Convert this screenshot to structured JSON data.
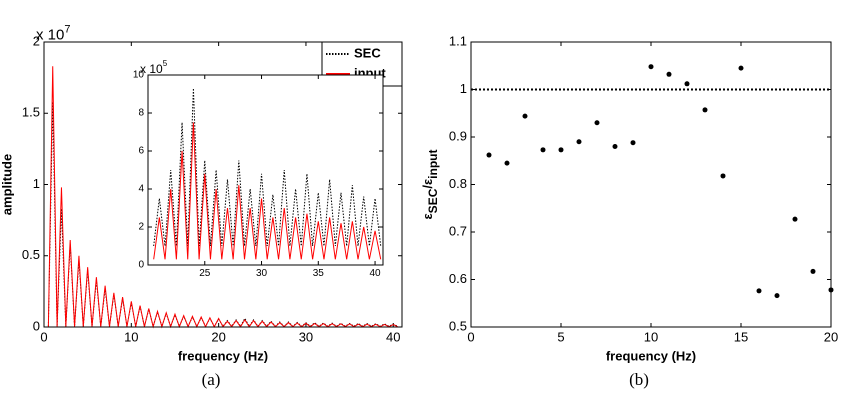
{
  "chart_data": [
    {
      "type": "line",
      "xlabel": "frequency (Hz)",
      "ylabel": "amplitude",
      "caption": "(a)",
      "y_multiplier": {
        "base": "x 10",
        "exponent": "7"
      },
      "xlim": [
        0,
        41
      ],
      "ylim": [
        0,
        2
      ],
      "xticks": [
        0,
        10,
        20,
        30,
        40
      ],
      "yticks": [
        0,
        0.5,
        1,
        1.5,
        2
      ],
      "legend": "upper right",
      "x": [
        0.5,
        1,
        1.5,
        2,
        2.5,
        3,
        3.5,
        4,
        4.5,
        5,
        5.5,
        6,
        6.5,
        7,
        7.5,
        8,
        8.5,
        9,
        9.5,
        10,
        10.5,
        11,
        11.5,
        12,
        12.5,
        13,
        13.5,
        14,
        14.5,
        15,
        15.5,
        16,
        16.5,
        17,
        17.5,
        18,
        18.5,
        19,
        19.5,
        20,
        20.5,
        21,
        21.5,
        22,
        22.5,
        23,
        23.5,
        24,
        24.5,
        25,
        25.5,
        26,
        26.5,
        27,
        27.5,
        28,
        28.5,
        29,
        29.5,
        30,
        30.5,
        31,
        31.5,
        32,
        32.5,
        33,
        33.5,
        34,
        34.5,
        35,
        35.5,
        36,
        36.5,
        37,
        37.5,
        38,
        38.5,
        39,
        39.5,
        40,
        40.5
      ],
      "series": [
        {
          "name": "SEC",
          "color": "#000000",
          "dash": "dotted",
          "values": [
            0.005,
            1.58,
            0.005,
            0.83,
            0.005,
            0.58,
            0.005,
            0.47,
            0.005,
            0.4,
            0.005,
            0.33,
            0.005,
            0.27,
            0.005,
            0.23,
            0.005,
            0.2,
            0.005,
            0.17,
            0.005,
            0.145,
            0.005,
            0.125,
            0.005,
            0.105,
            0.005,
            0.095,
            0.005,
            0.085,
            0.005,
            0.075,
            0.005,
            0.07,
            0.005,
            0.065,
            0.005,
            0.06,
            0.005,
            0.055,
            0.005,
            0.045,
            0.005,
            0.05,
            0.005,
            0.06,
            0.005,
            0.05,
            0.005,
            0.045,
            0.005,
            0.04,
            0.005,
            0.035,
            0.005,
            0.035,
            0.005,
            0.032,
            0.005,
            0.03,
            0.005,
            0.03,
            0.005,
            0.028,
            0.005,
            0.027,
            0.005,
            0.026,
            0.005,
            0.025,
            0.005,
            0.025,
            0.005,
            0.024,
            0.005,
            0.023,
            0.005,
            0.022,
            0.005,
            0.02,
            0.005
          ]
        },
        {
          "name": "input",
          "color": "#ff0000",
          "dash": "solid",
          "values": [
            0.002,
            1.83,
            0.002,
            0.98,
            0.002,
            0.61,
            0.002,
            0.5,
            0.002,
            0.42,
            0.002,
            0.35,
            0.002,
            0.29,
            0.002,
            0.24,
            0.002,
            0.21,
            0.002,
            0.18,
            0.002,
            0.15,
            0.002,
            0.13,
            0.002,
            0.11,
            0.002,
            0.1,
            0.002,
            0.09,
            0.002,
            0.08,
            0.002,
            0.075,
            0.002,
            0.07,
            0.002,
            0.065,
            0.002,
            0.06,
            0.002,
            0.04,
            0.002,
            0.045,
            0.002,
            0.05,
            0.002,
            0.045,
            0.002,
            0.04,
            0.002,
            0.035,
            0.002,
            0.03,
            0.002,
            0.03,
            0.002,
            0.028,
            0.002,
            0.026,
            0.002,
            0.025,
            0.002,
            0.024,
            0.002,
            0.023,
            0.002,
            0.022,
            0.002,
            0.021,
            0.002,
            0.02,
            0.002,
            0.02,
            0.002,
            0.019,
            0.002,
            0.018,
            0.002,
            0.017,
            0.002
          ]
        }
      ]
    },
    {
      "type": "line",
      "y_multiplier": {
        "base": "x 10",
        "exponent": "5"
      },
      "xlim": [
        20,
        40.7
      ],
      "ylim": [
        0,
        10
      ],
      "xticks": [
        25,
        30,
        35,
        40
      ],
      "yticks": [
        0,
        2,
        4,
        6,
        8,
        10
      ],
      "x": [
        20.5,
        21,
        21.5,
        22,
        22.5,
        23,
        23.5,
        24,
        24.5,
        25,
        25.5,
        26,
        26.5,
        27,
        27.5,
        28,
        28.5,
        29,
        29.5,
        30,
        30.5,
        31,
        31.5,
        32,
        32.5,
        33,
        33.5,
        34,
        34.5,
        35,
        35.5,
        36,
        36.5,
        37,
        37.5,
        38,
        38.5,
        39,
        39.5,
        40,
        40.5
      ],
      "series": [
        {
          "name": "SEC",
          "color": "#000000",
          "dash": "dotted",
          "values": [
            1,
            3.5,
            1,
            5,
            1,
            7.5,
            1,
            9.3,
            1,
            5.5,
            1,
            5,
            1,
            4.5,
            1,
            5.5,
            1,
            4,
            1,
            4.8,
            1,
            3.7,
            1,
            5,
            1,
            4,
            1,
            4.8,
            1,
            3.8,
            1,
            4.5,
            1,
            3.8,
            1,
            4.2,
            1,
            3.6,
            1,
            3.5,
            1
          ]
        },
        {
          "name": "input",
          "color": "#ff0000",
          "dash": "solid",
          "values": [
            0.3,
            2.5,
            0.3,
            4,
            0.3,
            6,
            0.3,
            7.5,
            0.3,
            4.8,
            0.3,
            4,
            0.3,
            3,
            0.3,
            4.2,
            0.3,
            3,
            0.3,
            3.5,
            0.3,
            2.5,
            0.3,
            3,
            0.3,
            2.5,
            0.3,
            2.7,
            0.3,
            2.3,
            0.3,
            2.5,
            0.3,
            2.2,
            0.3,
            2.3,
            0.3,
            2,
            0.3,
            1.8,
            0.3
          ]
        }
      ]
    },
    {
      "type": "scatter",
      "xlabel": "frequency (Hz)",
      "ylabel_parts": [
        "ε",
        "SEC",
        "/ε",
        "input"
      ],
      "caption": "(b)",
      "xlim": [
        0,
        20
      ],
      "ylim": [
        0.5,
        1.1
      ],
      "xticks": [
        0,
        5,
        10,
        15,
        20
      ],
      "yticks": [
        0.5,
        0.6,
        0.7,
        0.8,
        0.9,
        1,
        1.1
      ],
      "reference_line": 1,
      "color": "#000000",
      "x": [
        1,
        2,
        3,
        4,
        5,
        6,
        7,
        8,
        9,
        10,
        11,
        12,
        13,
        14,
        15,
        16,
        17,
        18,
        19,
        20
      ],
      "values": [
        0.862,
        0.845,
        0.944,
        0.873,
        0.873,
        0.89,
        0.93,
        0.88,
        0.888,
        1.048,
        1.032,
        1.012,
        0.957,
        0.818,
        1.045,
        0.576,
        0.566,
        0.727,
        0.617,
        0.578
      ]
    }
  ]
}
